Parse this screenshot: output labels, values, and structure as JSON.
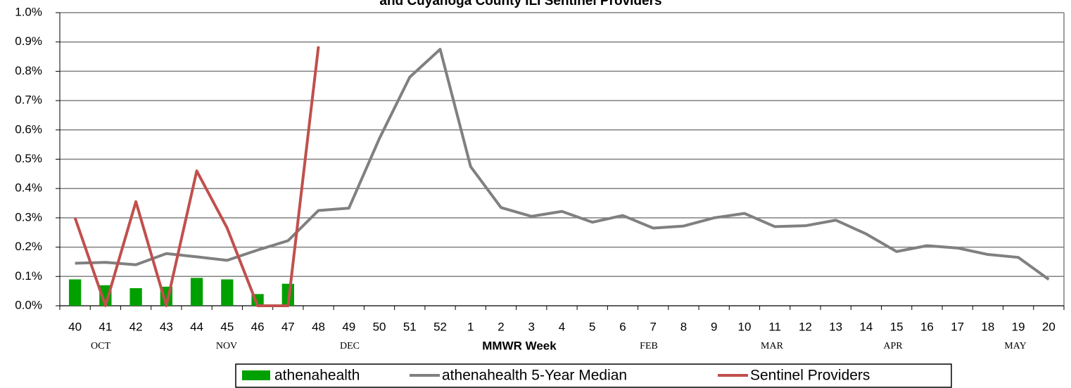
{
  "chart_data": {
    "type": "bar-line",
    "title": "and Cuyahoga County ILI Sentinel Providers",
    "x_label": "MMWR Week",
    "month_labels": [
      "OCT",
      "NOV",
      "DEC",
      "FEB",
      "MAR",
      "APR",
      "MAY"
    ],
    "categories": [
      "40",
      "41",
      "42",
      "43",
      "44",
      "45",
      "46",
      "47",
      "48",
      "49",
      "50",
      "51",
      "52",
      "1",
      "2",
      "3",
      "4",
      "5",
      "6",
      "7",
      "8",
      "9",
      "10",
      "11",
      "12",
      "13",
      "14",
      "15",
      "16",
      "17",
      "18",
      "19",
      "20"
    ],
    "ylim": [
      0,
      1
    ],
    "yticks": [
      {
        "value": 0,
        "label": "0.0%"
      },
      {
        "value": 0.1,
        "label": "0.1%"
      },
      {
        "value": 0.2,
        "label": "0.2%"
      },
      {
        "value": 0.3,
        "label": "0.3%"
      },
      {
        "value": 0.4,
        "label": "0.4%"
      },
      {
        "value": 0.5,
        "label": "0.5%"
      },
      {
        "value": 0.6,
        "label": "0.6%"
      },
      {
        "value": 0.7,
        "label": "0.7%"
      },
      {
        "value": 0.8,
        "label": "0.8%"
      },
      {
        "value": 0.9,
        "label": "0.9%"
      },
      {
        "value": 1,
        "label": "1.0%"
      }
    ],
    "grid": true,
    "series": [
      {
        "name": "athenahealth",
        "type": "bar",
        "color": "#00a000",
        "values": [
          0.09,
          0.07,
          0.06,
          0.065,
          0.095,
          0.09,
          0.04,
          0.075,
          null,
          null,
          null,
          null,
          null,
          null,
          null,
          null,
          null,
          null,
          null,
          null,
          null,
          null,
          null,
          null,
          null,
          null,
          null,
          null,
          null,
          null,
          null,
          null,
          null
        ]
      },
      {
        "name": "athenahealth 5-Year Median",
        "type": "line",
        "color": "#808080",
        "values": [
          0.145,
          0.148,
          0.14,
          0.178,
          0.167,
          0.155,
          0.19,
          0.222,
          0.325,
          0.333,
          0.57,
          0.78,
          0.875,
          0.475,
          0.335,
          0.305,
          0.322,
          0.285,
          0.308,
          0.265,
          0.272,
          0.3,
          0.315,
          0.27,
          0.273,
          0.292,
          0.245,
          0.185,
          0.205,
          0.197,
          0.175,
          0.165,
          0.09
        ]
      },
      {
        "name": "Sentinel Providers",
        "type": "line",
        "color": "#c0504d",
        "values": [
          0.3,
          0,
          0.355,
          0,
          0.46,
          0.265,
          0,
          0,
          0.885,
          null,
          null,
          null,
          null,
          null,
          null,
          null,
          null,
          null,
          null,
          null,
          null,
          null,
          null,
          null,
          null,
          null,
          null,
          null,
          null,
          null,
          null,
          null,
          null
        ]
      }
    ]
  }
}
